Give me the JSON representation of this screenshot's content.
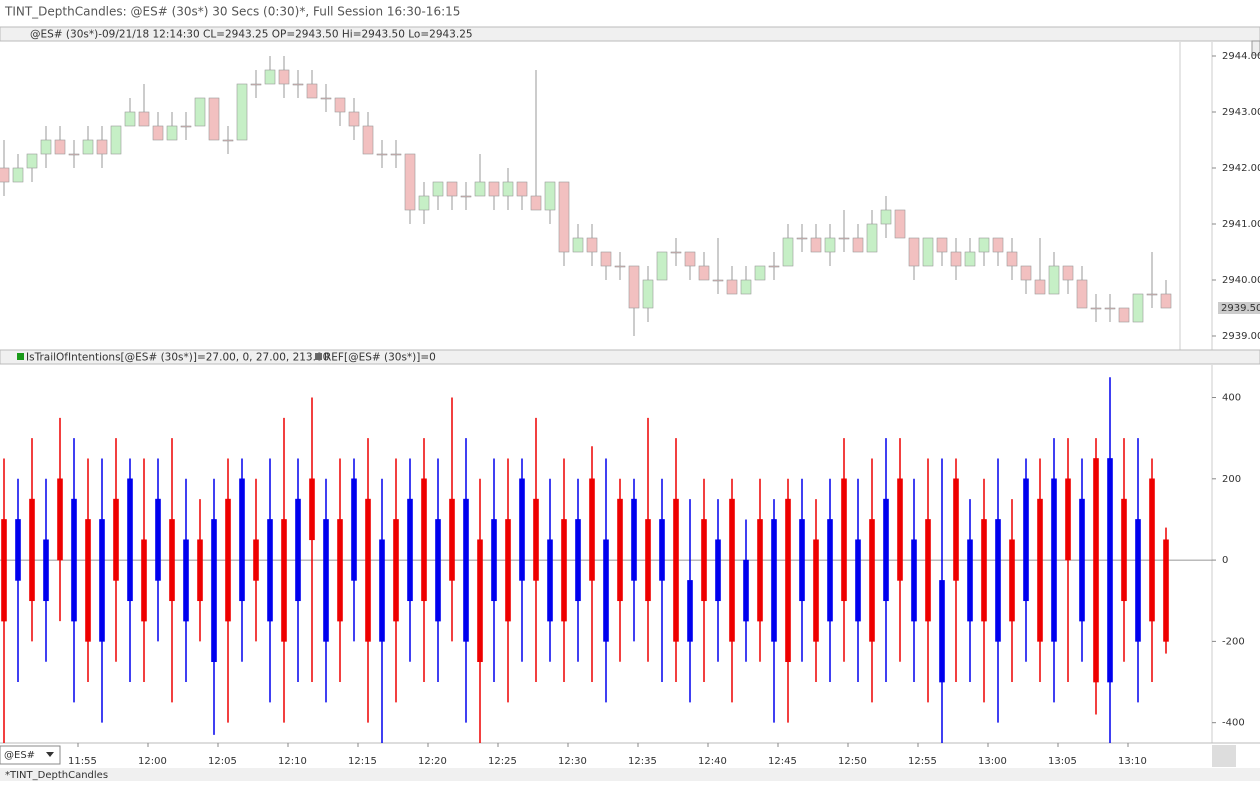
{
  "window_title": "TINT_DepthCandles: @ES# (30s*) 30 Secs (0:30)*, Full Session 16:30-16:15",
  "price_panel": {
    "header": "@ES# (30s*)-09/21/18 12:14:30 CL=2943.25 OP=2943.50 Hi=2943.50 Lo=2943.25",
    "type": "candlestick",
    "ylim": [
      2938.75,
      2944.25
    ],
    "yticks": [
      {
        "value": 2939,
        "label": "2939.00"
      },
      {
        "value": 2940,
        "label": "2940.00"
      },
      {
        "value": 2941,
        "label": "2941.00"
      },
      {
        "value": 2942,
        "label": "2942.00"
      },
      {
        "value": 2943,
        "label": "2943.00"
      },
      {
        "value": 2944,
        "label": "2944.00"
      }
    ],
    "last_price": {
      "value": 2939.5,
      "label": "2939.50"
    },
    "up_color": "#c6efc6",
    "down_color": "#f2c0c0",
    "bars": [
      [
        2942,
        2942.5,
        2941.5,
        2941.75
      ],
      [
        2941.75,
        2942.25,
        2941.75,
        2942
      ],
      [
        2942,
        2942.25,
        2941.75,
        2942.25
      ],
      [
        2942.25,
        2942.75,
        2942,
        2942.5
      ],
      [
        2942.5,
        2942.75,
        2942.25,
        2942.25
      ],
      [
        2942.25,
        2942.5,
        2942,
        2942.25
      ],
      [
        2942.25,
        2942.75,
        2942.25,
        2942.5
      ],
      [
        2942.5,
        2942.75,
        2942,
        2942.25
      ],
      [
        2942.25,
        2942.75,
        2942.25,
        2942.75
      ],
      [
        2942.75,
        2943.25,
        2942.75,
        2943
      ],
      [
        2943,
        2943.5,
        2942.75,
        2942.75
      ],
      [
        2942.75,
        2943,
        2942.5,
        2942.5
      ],
      [
        2942.5,
        2943,
        2942.5,
        2942.75
      ],
      [
        2942.75,
        2943,
        2942.5,
        2942.75
      ],
      [
        2942.75,
        2943.25,
        2942.75,
        2943.25
      ],
      [
        2943.25,
        2943.25,
        2942.5,
        2942.5
      ],
      [
        2942.5,
        2942.75,
        2942.25,
        2942.5
      ],
      [
        2942.5,
        2943.5,
        2942.5,
        2943.5
      ],
      [
        2943.5,
        2943.75,
        2943.25,
        2943.5
      ],
      [
        2943.5,
        2944,
        2943.5,
        2943.75
      ],
      [
        2943.75,
        2944,
        2943.25,
        2943.5
      ],
      [
        2943.5,
        2943.75,
        2943.25,
        2943.5
      ],
      [
        2943.5,
        2943.75,
        2943.25,
        2943.25
      ],
      [
        2943.25,
        2943.5,
        2943,
        2943.25
      ],
      [
        2943.25,
        2943.25,
        2942.75,
        2943
      ],
      [
        2943,
        2943.25,
        2942.5,
        2942.75
      ],
      [
        2942.75,
        2943,
        2942.25,
        2942.25
      ],
      [
        2942.25,
        2942.5,
        2942,
        2942.25
      ],
      [
        2942.25,
        2942.5,
        2942,
        2942.25
      ],
      [
        2942.25,
        2942.25,
        2941,
        2941.25
      ],
      [
        2941.25,
        2941.75,
        2941,
        2941.5
      ],
      [
        2941.5,
        2941.75,
        2941.25,
        2941.75
      ],
      [
        2941.75,
        2941.75,
        2941.25,
        2941.5
      ],
      [
        2941.5,
        2941.75,
        2941.25,
        2941.5
      ],
      [
        2941.5,
        2942.25,
        2941.5,
        2941.75
      ],
      [
        2941.75,
        2941.75,
        2941.25,
        2941.5
      ],
      [
        2941.5,
        2942,
        2941.25,
        2941.75
      ],
      [
        2941.75,
        2941.75,
        2941.25,
        2941.5
      ],
      [
        2941.5,
        2943.75,
        2941.25,
        2941.25
      ],
      [
        2941.25,
        2941.75,
        2941,
        2941.75
      ],
      [
        2941.75,
        2941.75,
        2940.25,
        2940.5
      ],
      [
        2940.5,
        2941,
        2940.5,
        2940.75
      ],
      [
        2940.75,
        2941,
        2940.25,
        2940.5
      ],
      [
        2940.5,
        2940.5,
        2940,
        2940.25
      ],
      [
        2940.25,
        2940.5,
        2940,
        2940.25
      ],
      [
        2940.25,
        2940.25,
        2939,
        2939.5
      ],
      [
        2939.5,
        2940.25,
        2939.25,
        2940
      ],
      [
        2940,
        2940.5,
        2940,
        2940.5
      ],
      [
        2940.5,
        2940.75,
        2940.25,
        2940.5
      ],
      [
        2940.5,
        2940.5,
        2940,
        2940.25
      ],
      [
        2940.25,
        2940.5,
        2940,
        2940
      ],
      [
        2940,
        2940.75,
        2939.75,
        2940
      ],
      [
        2940,
        2940.25,
        2939.75,
        2939.75
      ],
      [
        2939.75,
        2940.25,
        2939.75,
        2940
      ],
      [
        2940,
        2940.25,
        2940,
        2940.25
      ],
      [
        2940.25,
        2940.5,
        2940,
        2940.25
      ],
      [
        2940.25,
        2941,
        2940.25,
        2940.75
      ],
      [
        2940.75,
        2941,
        2940.5,
        2940.75
      ],
      [
        2940.75,
        2941,
        2940.5,
        2940.5
      ],
      [
        2940.5,
        2941,
        2940.25,
        2940.75
      ],
      [
        2940.75,
        2941.25,
        2940.5,
        2940.75
      ],
      [
        2940.75,
        2941,
        2940.5,
        2940.5
      ],
      [
        2940.5,
        2941.25,
        2940.5,
        2941
      ],
      [
        2941,
        2941.5,
        2940.75,
        2941.25
      ],
      [
        2941.25,
        2941.25,
        2940.75,
        2940.75
      ],
      [
        2940.75,
        2940.75,
        2940,
        2940.25
      ],
      [
        2940.25,
        2940.75,
        2940.25,
        2940.75
      ],
      [
        2940.75,
        2940.75,
        2940.25,
        2940.5
      ],
      [
        2940.5,
        2940.75,
        2940,
        2940.25
      ],
      [
        2940.25,
        2940.75,
        2940.25,
        2940.5
      ],
      [
        2940.5,
        2940.75,
        2940.25,
        2940.75
      ],
      [
        2940.75,
        2940.75,
        2940.25,
        2940.5
      ],
      [
        2940.5,
        2940.75,
        2940,
        2940.25
      ],
      [
        2940.25,
        2940.25,
        2939.75,
        2940
      ],
      [
        2940,
        2940.75,
        2939.75,
        2939.75
      ],
      [
        2939.75,
        2940.5,
        2939.75,
        2940.25
      ],
      [
        2940.25,
        2940.25,
        2939.75,
        2940
      ],
      [
        2940,
        2940.25,
        2939.5,
        2939.5
      ],
      [
        2939.5,
        2939.75,
        2939.25,
        2939.5
      ],
      [
        2939.5,
        2939.75,
        2939.25,
        2939.5
      ],
      [
        2939.5,
        2939.5,
        2939.25,
        2939.25
      ],
      [
        2939.25,
        2939.75,
        2939.25,
        2939.75
      ],
      [
        2939.75,
        2940.5,
        2939.5,
        2939.75
      ],
      [
        2939.75,
        2940,
        2939.5,
        2939.5
      ]
    ]
  },
  "indicator_panel": {
    "header": "IsTrailOfIntentions[@ES# (30s*)]=27.00, 0, 27.00, 213.00",
    "ref_label": "REF[@ES# (30s*)]=0",
    "type": "candlestick",
    "ylim": [
      -450,
      480
    ],
    "yticks": [
      -400,
      -200,
      0,
      200,
      400
    ],
    "up_color": "#0000ee",
    "down_color": "#ee0000",
    "bars": [
      [
        100,
        -150,
        -450,
        250
      ],
      [
        -50,
        100,
        -300,
        200
      ],
      [
        150,
        -100,
        -200,
        300
      ],
      [
        -100,
        50,
        -250,
        200
      ],
      [
        200,
        0,
        -150,
        350
      ],
      [
        -150,
        150,
        -350,
        300
      ],
      [
        100,
        -200,
        -300,
        250
      ],
      [
        -200,
        100,
        -400,
        250
      ],
      [
        150,
        -50,
        -250,
        300
      ],
      [
        -100,
        200,
        -300,
        250
      ],
      [
        50,
        -150,
        -300,
        250
      ],
      [
        -50,
        150,
        -200,
        250
      ],
      [
        100,
        -100,
        -350,
        300
      ],
      [
        -150,
        50,
        -300,
        200
      ],
      [
        50,
        -100,
        -200,
        150
      ],
      [
        -250,
        100,
        -430,
        200
      ],
      [
        150,
        -150,
        -400,
        250
      ],
      [
        -100,
        200,
        -250,
        250
      ],
      [
        50,
        -50,
        -200,
        200
      ],
      [
        -150,
        100,
        -350,
        250
      ],
      [
        100,
        -200,
        -400,
        350
      ],
      [
        -100,
        150,
        -300,
        250
      ],
      [
        200,
        50,
        -300,
        400
      ],
      [
        -200,
        100,
        -350,
        200
      ],
      [
        100,
        -150,
        -300,
        250
      ],
      [
        -50,
        200,
        -200,
        250
      ],
      [
        150,
        -200,
        -400,
        300
      ],
      [
        -200,
        50,
        -450,
        200
      ],
      [
        100,
        -150,
        -350,
        250
      ],
      [
        -100,
        150,
        -250,
        250
      ],
      [
        200,
        -100,
        -300,
        300
      ],
      [
        -150,
        100,
        -300,
        250
      ],
      [
        150,
        -50,
        -200,
        400
      ],
      [
        -200,
        150,
        -400,
        300
      ],
      [
        50,
        -250,
        -450,
        200
      ],
      [
        -100,
        100,
        -300,
        250
      ],
      [
        100,
        -150,
        -350,
        250
      ],
      [
        -50,
        200,
        -250,
        250
      ],
      [
        150,
        -50,
        -300,
        350
      ],
      [
        -150,
        50,
        -250,
        200
      ],
      [
        100,
        -150,
        -300,
        250
      ],
      [
        -100,
        100,
        -250,
        200
      ],
      [
        200,
        -50,
        -300,
        280
      ],
      [
        -200,
        50,
        -350,
        250
      ],
      [
        150,
        -100,
        -250,
        200
      ],
      [
        -50,
        150,
        -200,
        200
      ],
      [
        100,
        -100,
        -250,
        350
      ],
      [
        -50,
        100,
        -300,
        200
      ],
      [
        150,
        -200,
        -300,
        300
      ],
      [
        -200,
        -50,
        -350,
        150
      ],
      [
        100,
        -100,
        -300,
        200
      ],
      [
        -100,
        50,
        -250,
        150
      ],
      [
        150,
        -200,
        -350,
        200
      ],
      [
        -150,
        0,
        -250,
        100
      ],
      [
        100,
        -150,
        -250,
        200
      ],
      [
        -200,
        100,
        -400,
        150
      ],
      [
        150,
        -250,
        -400,
        200
      ],
      [
        -100,
        100,
        -250,
        200
      ],
      [
        50,
        -200,
        -300,
        150
      ],
      [
        -150,
        100,
        -300,
        200
      ],
      [
        200,
        -100,
        -250,
        300
      ],
      [
        -150,
        50,
        -300,
        200
      ],
      [
        100,
        -200,
        -350,
        250
      ],
      [
        -100,
        150,
        -300,
        300
      ],
      [
        200,
        -50,
        -250,
        300
      ],
      [
        -150,
        50,
        -300,
        200
      ],
      [
        100,
        -150,
        -350,
        250
      ],
      [
        -300,
        -50,
        -450,
        250
      ],
      [
        200,
        -50,
        -300,
        250
      ],
      [
        -150,
        50,
        -300,
        150
      ],
      [
        100,
        -150,
        -350,
        200
      ],
      [
        -200,
        100,
        -400,
        250
      ],
      [
        50,
        -150,
        -300,
        150
      ],
      [
        -100,
        200,
        -250,
        250
      ],
      [
        150,
        -200,
        -300,
        250
      ],
      [
        -200,
        200,
        -350,
        300
      ],
      [
        200,
        0,
        -300,
        300
      ],
      [
        -150,
        150,
        -250,
        250
      ],
      [
        250,
        -300,
        -380,
        300
      ],
      [
        -300,
        250,
        -450,
        450
      ],
      [
        150,
        -100,
        -250,
        300
      ],
      [
        -200,
        100,
        -350,
        300
      ],
      [
        200,
        -150,
        -300,
        250
      ],
      [
        50,
        -200,
        -230,
        80
      ]
    ]
  },
  "time_axis": [
    "11:55",
    "12:00",
    "12:05",
    "12:10",
    "12:15",
    "12:20",
    "12:25",
    "12:30",
    "12:35",
    "12:40",
    "12:45",
    "12:50",
    "12:55",
    "13:00",
    "13:05",
    "13:10"
  ],
  "symbol": "@ES#",
  "tab": "*TINT_DepthCandles"
}
